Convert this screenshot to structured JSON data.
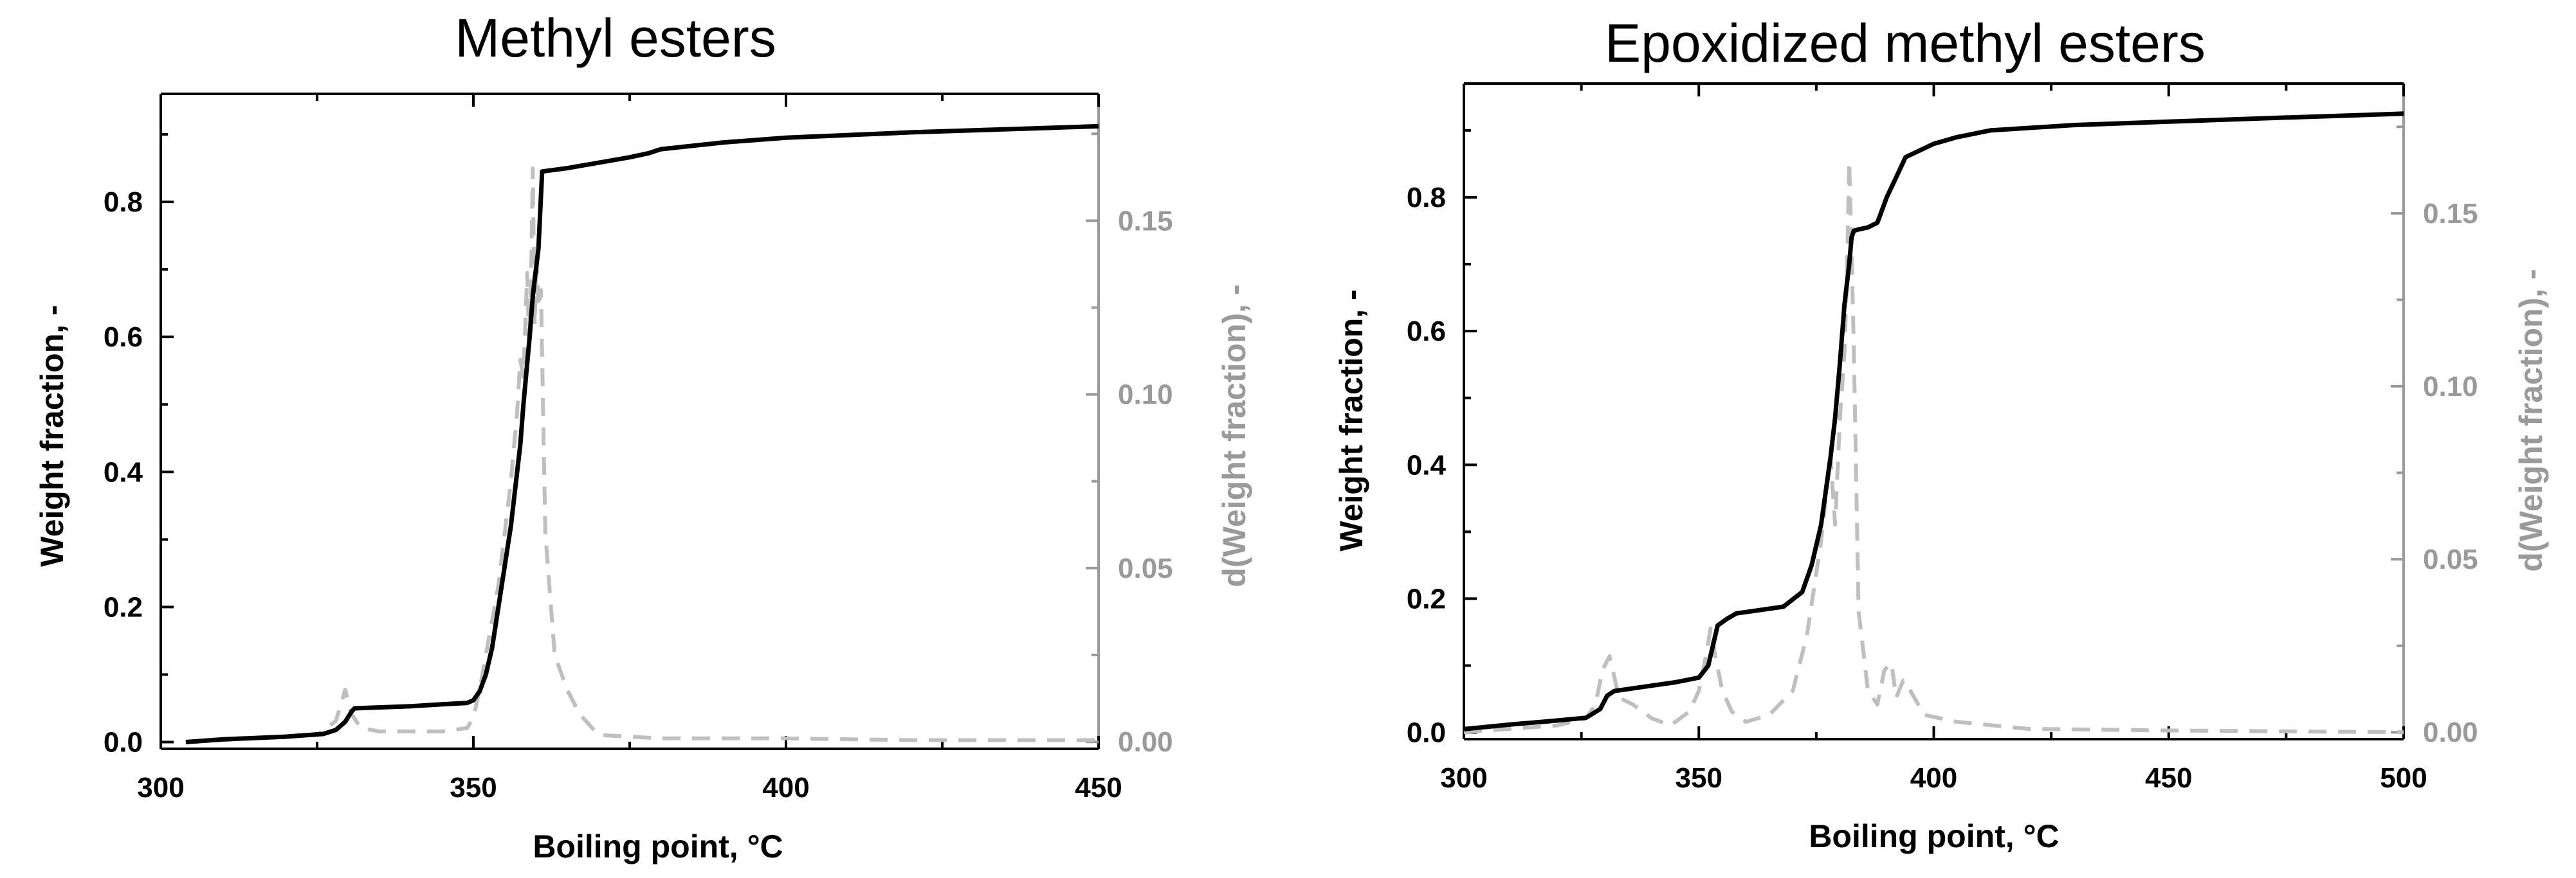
{
  "chart_data": [
    {
      "type": "line",
      "title": "Methyl esters",
      "xlabel": "Boiling point, °C",
      "ylabel": "Weight fraction, -",
      "y2label": "d(Weight fraction), -",
      "xlim": [
        300,
        450
      ],
      "ylim": [
        -0.01,
        0.96
      ],
      "y2lim": [
        -0.002,
        0.1865
      ],
      "xticks": [
        300,
        350,
        400,
        450
      ],
      "yticks": [
        0.0,
        0.2,
        0.4,
        0.6,
        0.8
      ],
      "y2ticks": [
        0.0,
        0.05,
        0.1,
        0.15
      ],
      "xtick_labels": [
        "300",
        "350",
        "400",
        "450"
      ],
      "ytick_labels": [
        "0.0",
        "0.2",
        "0.4",
        "0.6",
        "0.8"
      ],
      "y2tick_labels": [
        "0.00",
        "0.05",
        "0.10",
        "0.15"
      ],
      "colors": {
        "cumulative": "#000000",
        "derivative": "#bfbfbf",
        "right_axis": "#9a9a9a"
      },
      "series": [
        {
          "axis": "left",
          "style": "solid",
          "x": [
            304,
            310,
            320,
            326,
            328,
            329.5,
            330.5,
            331,
            340,
            345,
            349,
            350,
            351,
            352,
            353,
            354,
            355,
            356,
            357,
            357.5,
            358,
            358.5,
            359,
            359.5,
            360,
            360.4,
            361,
            365,
            370,
            375,
            378,
            380,
            390,
            400,
            410,
            420,
            430,
            440,
            450
          ],
          "y": [
            0.0,
            0.004,
            0.008,
            0.012,
            0.018,
            0.03,
            0.045,
            0.05,
            0.053,
            0.056,
            0.058,
            0.062,
            0.075,
            0.1,
            0.14,
            0.2,
            0.26,
            0.32,
            0.4,
            0.44,
            0.5,
            0.55,
            0.6,
            0.66,
            0.7,
            0.73,
            0.845,
            0.85,
            0.858,
            0.866,
            0.872,
            0.878,
            0.888,
            0.895,
            0.899,
            0.903,
            0.906,
            0.909,
            0.912
          ]
        },
        {
          "axis": "right",
          "style": "dashed",
          "x": [
            304,
            315,
            325,
            328,
            329.5,
            330.5,
            332,
            335,
            345,
            349,
            350,
            351,
            352,
            353,
            354,
            355,
            356,
            356.5,
            357,
            357.5,
            358,
            358.3,
            358.6,
            358.9,
            359.2,
            359.5,
            359.8,
            360.1,
            360.4,
            360.8,
            361.5,
            363,
            365,
            367,
            370,
            380,
            400,
            420,
            450
          ],
          "y": [
            0.0,
            0.001,
            0.002,
            0.006,
            0.015,
            0.008,
            0.004,
            0.003,
            0.003,
            0.004,
            0.007,
            0.015,
            0.025,
            0.035,
            0.045,
            0.06,
            0.075,
            0.085,
            0.095,
            0.11,
            0.105,
            0.12,
            0.135,
            0.115,
            0.13,
            0.165,
            0.12,
            0.14,
            0.125,
            0.13,
            0.06,
            0.025,
            0.015,
            0.008,
            0.002,
            0.001,
            0.001,
            0.0005,
            0.0005
          ]
        }
      ]
    },
    {
      "type": "line",
      "title": "Epoxidized methyl esters",
      "xlabel": "Boiling point, °C",
      "ylabel": "Weight fraction, -",
      "y2label": "d(Weight fraction), -",
      "xlim": [
        300,
        500
      ],
      "ylim": [
        -0.01,
        0.97
      ],
      "y2lim": [
        -0.002,
        0.1875
      ],
      "xticks": [
        300,
        350,
        400,
        450,
        500
      ],
      "yticks": [
        0.0,
        0.2,
        0.4,
        0.6,
        0.8
      ],
      "y2ticks": [
        0.0,
        0.05,
        0.1,
        0.15
      ],
      "xtick_labels": [
        "300",
        "350",
        "400",
        "450",
        "500"
      ],
      "ytick_labels": [
        "0.0",
        "0.2",
        "0.4",
        "0.6",
        "0.8"
      ],
      "y2tick_labels": [
        "0.00",
        "0.05",
        "0.10",
        "0.15"
      ],
      "colors": {
        "cumulative": "#000000",
        "derivative": "#bfbfbf",
        "right_axis": "#9a9a9a"
      },
      "series": [
        {
          "axis": "left",
          "style": "solid",
          "x": [
            300,
            310,
            320,
            326,
            329,
            330.5,
            332,
            340,
            345,
            350,
            352,
            353,
            354,
            356,
            358,
            362,
            368,
            372,
            374,
            376,
            377,
            378,
            379,
            380,
            381,
            382,
            382.5,
            383,
            384,
            386,
            388,
            390,
            392,
            394,
            397,
            400,
            405,
            412,
            430,
            450,
            470,
            500
          ],
          "y": [
            0.005,
            0.012,
            0.018,
            0.022,
            0.035,
            0.055,
            0.062,
            0.07,
            0.075,
            0.082,
            0.1,
            0.13,
            0.16,
            0.17,
            0.178,
            0.182,
            0.188,
            0.21,
            0.25,
            0.31,
            0.36,
            0.41,
            0.47,
            0.55,
            0.64,
            0.7,
            0.74,
            0.75,
            0.752,
            0.755,
            0.762,
            0.8,
            0.83,
            0.86,
            0.87,
            0.88,
            0.89,
            0.9,
            0.908,
            0.913,
            0.918,
            0.925
          ]
        },
        {
          "axis": "right",
          "style": "dashed",
          "x": [
            300,
            310,
            320,
            326,
            328,
            329.5,
            331,
            333,
            336,
            340,
            344,
            348,
            350,
            351.5,
            352.5,
            353.5,
            355,
            357,
            360,
            365,
            370,
            373,
            376,
            378,
            379,
            380,
            381,
            381.5,
            382,
            382.5,
            383,
            384,
            386,
            388,
            389.5,
            391,
            392,
            393.5,
            395,
            398,
            405,
            420,
            450,
            500
          ],
          "y": [
            0.0,
            0.001,
            0.002,
            0.004,
            0.008,
            0.018,
            0.022,
            0.01,
            0.008,
            0.004,
            0.002,
            0.006,
            0.012,
            0.022,
            0.03,
            0.022,
            0.012,
            0.006,
            0.003,
            0.005,
            0.012,
            0.028,
            0.055,
            0.08,
            0.06,
            0.09,
            0.11,
            0.13,
            0.165,
            0.14,
            0.11,
            0.035,
            0.012,
            0.008,
            0.018,
            0.02,
            0.01,
            0.015,
            0.012,
            0.005,
            0.003,
            0.001,
            0.0005,
            0.0
          ]
        }
      ]
    }
  ]
}
